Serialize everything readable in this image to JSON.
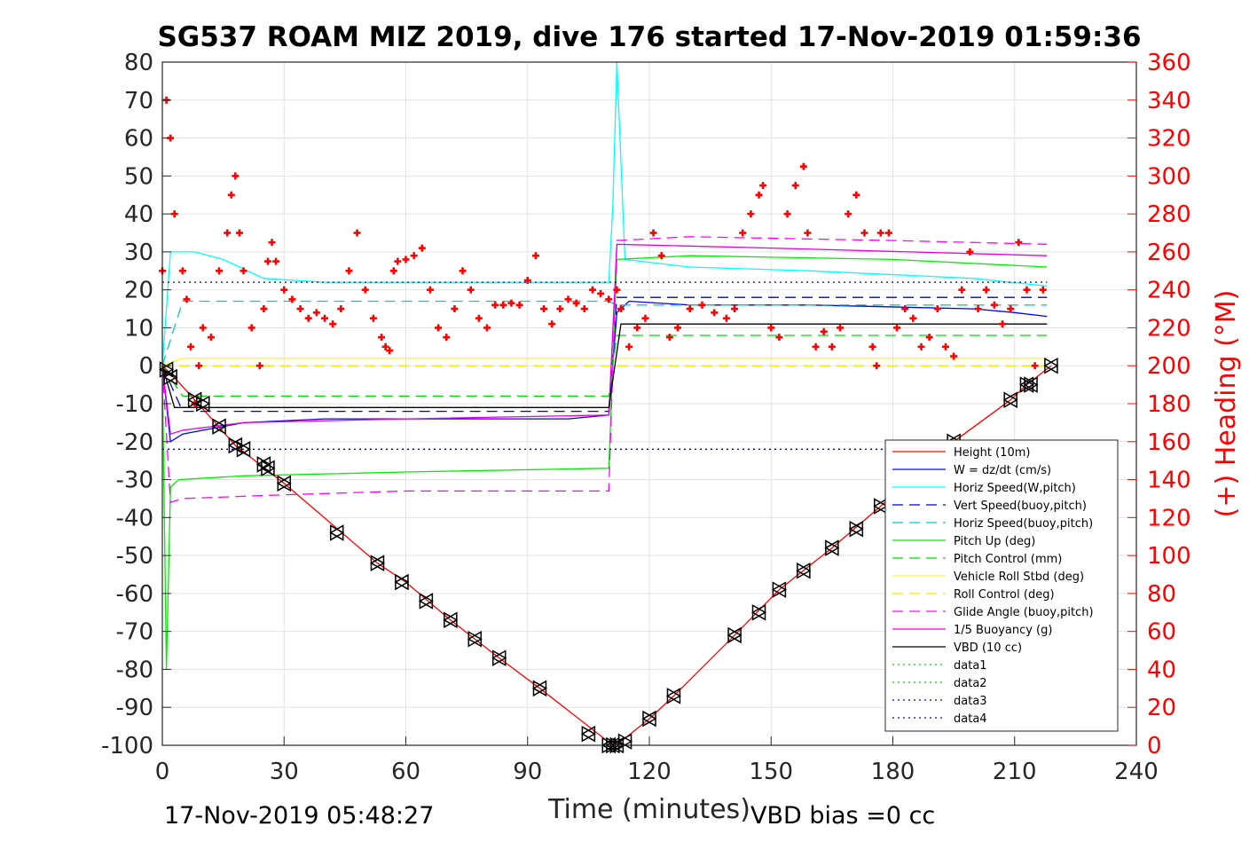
{
  "title": "SG537 ROAM MIZ 2019, dive 176 started 17-Nov-2019 01:59:36",
  "footer_left": "17-Nov-2019 05:48:27",
  "footer_right": "VBD bias =0 cc",
  "chart_data": {
    "type": "line",
    "title": "SG537 ROAM MIZ 2019, dive 176 started 17-Nov-2019 01:59:36",
    "xlabel": "Time (minutes)",
    "ylabel": "",
    "y2label": "(+) Heading (°M)",
    "xlim": [
      0,
      240
    ],
    "ylim": [
      -100,
      80
    ],
    "y2lim": [
      0,
      360
    ],
    "x_ticks": [
      "0",
      "30",
      "60",
      "90",
      "120",
      "150",
      "180",
      "210",
      "240"
    ],
    "y_ticks": [
      "80",
      "70",
      "60",
      "50",
      "40",
      "30",
      "20",
      "10",
      "0",
      "-10",
      "-20",
      "-30",
      "-40",
      "-50",
      "-60",
      "-70",
      "-80",
      "-90",
      "-100"
    ],
    "y2_ticks": [
      "360",
      "340",
      "320",
      "300",
      "280",
      "260",
      "240",
      "220",
      "200",
      "180",
      "160",
      "140",
      "120",
      "100",
      "80",
      "60",
      "40",
      "20",
      "0"
    ],
    "grid": true,
    "legend_position": "lower-right",
    "colors": {
      "height": "#ff0000",
      "w": "#0000ff",
      "horiz_speed_w": "#00ffff",
      "vert_speed_buoy": "#0000c8",
      "horiz_speed_buoy": "#00cccc",
      "pitch_up": "#00ee00",
      "pitch_control": "#00dd00",
      "roll": "#ffff00",
      "roll_control": "#eeee00",
      "glide_angle": "#ff00ff",
      "buoyancy": "#e600e6",
      "vbd": "#000000",
      "heading": "#ff0000"
    },
    "series": [
      {
        "name": "Height (10m)",
        "style": "solid",
        "color": "#ff0000",
        "x": [
          0,
          2,
          8,
          18,
          30,
          53,
          60,
          71,
          83,
          93,
          111,
          113,
          120,
          126,
          141,
          152,
          165,
          177,
          195,
          209,
          213,
          219
        ],
        "y": [
          0,
          -2,
          -9,
          -21,
          -31,
          -52,
          -57,
          -67,
          -77,
          -85,
          -100,
          -99,
          -93,
          -87,
          -71,
          -59,
          -48,
          -37,
          -20,
          -9,
          -5,
          0
        ]
      },
      {
        "name": "W = dz/dt (cm/s)",
        "style": "solid",
        "color": "#0000ff",
        "x": [
          0,
          2,
          5,
          10,
          20,
          40,
          70,
          100,
          110,
          112,
          115,
          130,
          160,
          200,
          210,
          218
        ],
        "y": [
          0,
          -20,
          -18,
          -17,
          -15,
          -14,
          -14,
          -14,
          -13,
          14,
          17,
          16,
          16,
          15,
          14,
          13
        ]
      },
      {
        "name": "Horiz Speed(W,pitch)",
        "style": "solid",
        "color": "#00ffff",
        "x": [
          0,
          2,
          8,
          15,
          25,
          40,
          70,
          100,
          110,
          111,
          112,
          114,
          130,
          160,
          200,
          218
        ],
        "y": [
          0,
          30,
          30,
          28,
          23,
          22,
          22,
          22,
          22,
          42,
          80,
          28,
          26,
          25,
          23,
          21
        ]
      },
      {
        "name": "Vert Speed(buoy,pitch)",
        "style": "dash",
        "color": "#0000c8",
        "x": [
          0,
          5,
          110,
          112,
          218
        ],
        "y": [
          0,
          -12,
          -12,
          18,
          18
        ]
      },
      {
        "name": "Horiz Speed(buoy,pitch)",
        "style": "dash",
        "color": "#00cccc",
        "x": [
          0,
          5,
          110,
          112,
          218
        ],
        "y": [
          0,
          17,
          17,
          16,
          16
        ]
      },
      {
        "name": "Pitch Up (deg)",
        "style": "solid",
        "color": "#00ee00",
        "x": [
          0,
          1,
          2,
          4,
          20,
          60,
          110,
          112,
          130,
          180,
          218
        ],
        "y": [
          0,
          -80,
          -32,
          -30,
          -29,
          -28,
          -27,
          28,
          29,
          28,
          26
        ]
      },
      {
        "name": "Pitch Control (mm)",
        "style": "dash",
        "color": "#00dd00",
        "x": [
          0,
          5,
          110,
          112,
          218
        ],
        "y": [
          0,
          -8,
          -8,
          8,
          8
        ]
      },
      {
        "name": "Vehicle Roll Stbd (deg)",
        "style": "solid",
        "color": "#ffff00",
        "x": [
          0,
          5,
          60,
          110,
          112,
          150,
          200,
          218
        ],
        "y": [
          0,
          2,
          2,
          2,
          2,
          2,
          2,
          2
        ]
      },
      {
        "name": "Roll Control (deg)",
        "style": "dash",
        "color": "#eeee00",
        "x": [
          0,
          5,
          110,
          112,
          218
        ],
        "y": [
          0,
          0,
          0,
          0,
          0
        ]
      },
      {
        "name": "Glide Angle (buoy,pitch)",
        "style": "dash",
        "color": "#ff00ff",
        "x": [
          0,
          2,
          5,
          30,
          60,
          110,
          112,
          130,
          180,
          218
        ],
        "y": [
          0,
          -36,
          -35,
          -34,
          -33,
          -33,
          33,
          34,
          33,
          32
        ]
      },
      {
        "name": "1/5 Buoyancy (g)",
        "style": "solid",
        "color": "#e600e6",
        "x": [
          0,
          2,
          5,
          20,
          60,
          110,
          112,
          150,
          218
        ],
        "y": [
          0,
          -18,
          -17,
          -15,
          -14,
          -13,
          32,
          31,
          29
        ]
      },
      {
        "name": "VBD (10 cc)",
        "style": "solid",
        "color": "#000000",
        "x": [
          0,
          3,
          110,
          113,
          218
        ],
        "y": [
          0,
          -11,
          -11,
          11,
          11
        ]
      },
      {
        "name": "data1",
        "style": "dot",
        "color": "#00cc00",
        "x": [],
        "y": []
      },
      {
        "name": "data2",
        "style": "dot",
        "color": "#00cc00",
        "x": [],
        "y": []
      },
      {
        "name": "data3",
        "style": "dot",
        "color": "#0000aa",
        "x": [
          0,
          218
        ],
        "y": [
          22,
          22
        ]
      },
      {
        "name": "data4",
        "style": "dot",
        "color": "#0000aa",
        "x": [
          0,
          218
        ],
        "y": [
          -22,
          -22
        ]
      }
    ],
    "heading_points": {
      "color": "#ff0000",
      "x": [
        0,
        1,
        2,
        3,
        5,
        6,
        7,
        8,
        9,
        10,
        12,
        14,
        16,
        17,
        18,
        19,
        20,
        22,
        24,
        25,
        26,
        27,
        28,
        30,
        32,
        34,
        36,
        38,
        40,
        42,
        44,
        46,
        48,
        50,
        52,
        54,
        55,
        56,
        57,
        58,
        60,
        62,
        64,
        66,
        68,
        70,
        72,
        74,
        76,
        78,
        80,
        82,
        84,
        86,
        88,
        90,
        92,
        94,
        96,
        98,
        100,
        102,
        104,
        106,
        108,
        110,
        112,
        113,
        115,
        117,
        119,
        121,
        123,
        125,
        127,
        130,
        133,
        136,
        139,
        141,
        143,
        145,
        147,
        148,
        150,
        152,
        154,
        156,
        158,
        159,
        161,
        163,
        165,
        167,
        169,
        171,
        173,
        175,
        176,
        177,
        179,
        181,
        183,
        185,
        187,
        189,
        191,
        193,
        195,
        197,
        199,
        201,
        203,
        205,
        207,
        209,
        211,
        213,
        215,
        217
      ],
      "y": [
        250,
        340,
        320,
        280,
        250,
        235,
        210,
        180,
        200,
        220,
        215,
        250,
        270,
        290,
        300,
        270,
        250,
        220,
        200,
        230,
        255,
        265,
        255,
        240,
        235,
        230,
        225,
        228,
        225,
        222,
        230,
        250,
        270,
        240,
        225,
        215,
        210,
        208,
        250,
        255,
        256,
        258,
        262,
        240,
        220,
        215,
        230,
        250,
        240,
        225,
        220,
        232,
        232,
        233,
        232,
        245,
        258,
        230,
        222,
        230,
        235,
        233,
        230,
        240,
        238,
        235,
        240,
        230,
        210,
        220,
        225,
        270,
        258,
        215,
        220,
        230,
        232,
        228,
        225,
        230,
        270,
        280,
        290,
        295,
        220,
        215,
        280,
        295,
        305,
        270,
        210,
        218,
        210,
        220,
        280,
        290,
        270,
        210,
        200,
        270,
        270,
        220,
        230,
        225,
        210,
        215,
        230,
        210,
        205,
        240,
        260,
        230,
        240,
        232,
        222,
        230,
        265,
        240,
        200,
        240
      ]
    },
    "dive_markers": {
      "x": [
        1,
        2,
        8,
        10,
        14,
        18,
        20,
        25,
        26,
        30,
        43,
        53,
        59,
        65,
        71,
        77,
        83,
        93,
        105,
        110,
        111,
        112,
        114,
        120,
        126,
        141,
        147,
        152,
        158,
        165,
        171,
        177,
        183,
        189,
        195,
        209,
        213,
        214,
        219
      ],
      "y": [
        -1,
        -3,
        -9,
        -10,
        -16,
        -21,
        -22,
        -26,
        -27,
        -31,
        -44,
        -52,
        -57,
        -62,
        -67,
        -72,
        -77,
        -85,
        -97,
        -100,
        -100,
        -100,
        -99,
        -93,
        -87,
        -71,
        -65,
        -59,
        -54,
        -48,
        -43,
        -37,
        -31,
        -26,
        -20,
        -9,
        -5,
        -5,
        0
      ]
    }
  }
}
